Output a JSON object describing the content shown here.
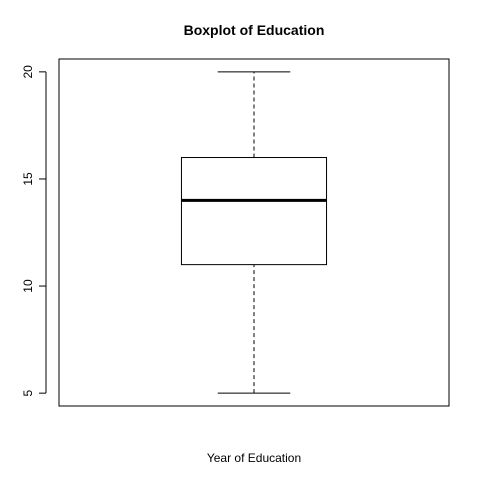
{
  "chart_data": {
    "type": "boxplot",
    "title": "Boxplot of Education",
    "xlabel": "Year of Education",
    "ylabel": "",
    "ylim": [
      4.4,
      20.6
    ],
    "yticks": [
      5,
      10,
      15,
      20
    ],
    "yticks_labels": [
      "5",
      "10",
      "15",
      "20"
    ],
    "grid": false,
    "series": [
      {
        "min": 5,
        "q1": 11,
        "median": 14,
        "q3": 16,
        "max": 20
      }
    ]
  },
  "colors": {
    "stroke": "#000000",
    "background": "#ffffff"
  }
}
